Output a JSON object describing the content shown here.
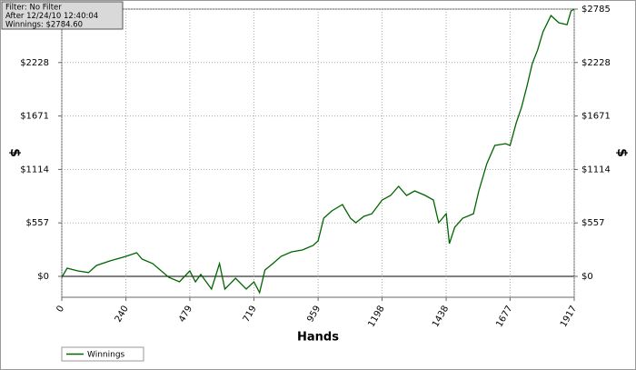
{
  "chart_data": {
    "type": "line",
    "annotations": [
      "Filter: No Filter",
      "After 12/24/10 12:40:04",
      "Winnings: $2784.60"
    ],
    "x_label": "Hands",
    "y_label": "$",
    "x": [
      0,
      20,
      60,
      100,
      130,
      180,
      240,
      280,
      300,
      340,
      400,
      440,
      479,
      500,
      520,
      560,
      590,
      610,
      650,
      690,
      719,
      740,
      760,
      790,
      820,
      860,
      900,
      940,
      959,
      980,
      1010,
      1050,
      1080,
      1100,
      1130,
      1160,
      1198,
      1230,
      1260,
      1290,
      1320,
      1360,
      1390,
      1410,
      1438,
      1450,
      1470,
      1500,
      1540,
      1560,
      1590,
      1620,
      1660,
      1677,
      1700,
      1720,
      1740,
      1760,
      1780,
      1800,
      1830,
      1860,
      1890,
      1905,
      1917
    ],
    "series": [
      {
        "name": "Winnings",
        "color": "#006400",
        "values": [
          -10,
          85,
          57,
          40,
          114,
          161,
          208,
          246,
          180,
          133,
          -10,
          -57,
          57,
          -57,
          20,
          -133,
          133,
          -133,
          -20,
          -133,
          -57,
          -170,
          66,
          133,
          208,
          256,
          275,
          322,
          369,
          606,
          682,
          748,
          606,
          559,
          625,
          653,
          795,
          843,
          938,
          843,
          890,
          843,
          795,
          559,
          653,
          341,
          511,
          606,
          653,
          890,
          1174,
          1364,
          1383,
          1364,
          1600,
          1761,
          1979,
          2216,
          2358,
          2547,
          2718,
          2642,
          2623,
          2765,
          2785
        ]
      }
    ],
    "xlim": [
      0,
      1917
    ],
    "ylim": [
      -218,
      2785
    ],
    "xticks": [
      0,
      240,
      479,
      719,
      959,
      1198,
      1438,
      1677,
      1917
    ],
    "yticks": [
      {
        "value": 0,
        "label": "$0"
      },
      {
        "value": 557,
        "label": "$557"
      },
      {
        "value": 1114,
        "label": "$1114"
      },
      {
        "value": 1671,
        "label": "$1671"
      },
      {
        "value": 2228,
        "label": "$2228"
      },
      {
        "value": 2785,
        "label": "$2785"
      }
    ],
    "grid": true,
    "legend": "bottom-left"
  }
}
